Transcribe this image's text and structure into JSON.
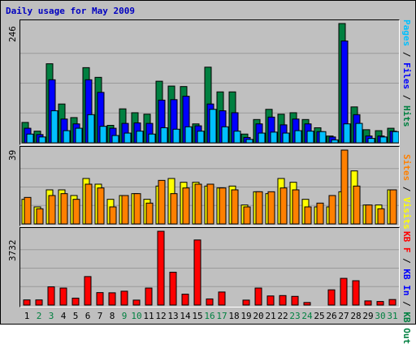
{
  "title": "Daily usage for May 2009",
  "chart_data": [
    {
      "type": "bar",
      "panel": "hits-files-pages",
      "ymax_label": "246",
      "ylim": [
        0,
        246
      ],
      "legend": [
        {
          "text": "Pages",
          "color": "#00c0ff"
        },
        {
          "text": " / ",
          "color": "#000000"
        },
        {
          "text": "Files",
          "color": "#0000ff"
        },
        {
          "text": " / ",
          "color": "#000000"
        },
        {
          "text": "Hits",
          "color": "#008040"
        }
      ],
      "series": [
        {
          "name": "Hits",
          "color": "#008040",
          "values": [
            42,
            24,
            163,
            80,
            52,
            155,
            135,
            36,
            70,
            62,
            59,
            127,
            117,
            116,
            39,
            156,
            105,
            105,
            18,
            48,
            69,
            59,
            62,
            48,
            31,
            14,
            246,
            74,
            27,
            25,
            30
          ]
        },
        {
          "name": "Files",
          "color": "#0000ff",
          "values": [
            30,
            17,
            130,
            49,
            39,
            130,
            104,
            30,
            40,
            41,
            40,
            88,
            89,
            96,
            35,
            80,
            66,
            62,
            11,
            39,
            53,
            37,
            49,
            39,
            23,
            12,
            210,
            58,
            14,
            14,
            24
          ]
        },
        {
          "name": "Pages",
          "color": "#00c0ff",
          "values": [
            18,
            12,
            66,
            25,
            30,
            58,
            34,
            15,
            20,
            24,
            18,
            31,
            28,
            33,
            24,
            69,
            33,
            24,
            7,
            20,
            22,
            20,
            25,
            24,
            23,
            6,
            39,
            40,
            9,
            12,
            23
          ]
        }
      ]
    },
    {
      "type": "bar",
      "panel": "visits-sites",
      "ymax_label": "39",
      "ylim": [
        0,
        39
      ],
      "legend": [
        {
          "text": "Sites",
          "color": "#ff8000"
        },
        {
          "text": " / ",
          "color": "#000000"
        },
        {
          "text": "Visits",
          "color": "#ffff00"
        }
      ],
      "series": [
        {
          "name": "Visits",
          "color": "#ffff00",
          "values": [
            13,
            9,
            18,
            18,
            15,
            24,
            21,
            13,
            15,
            16,
            13,
            20,
            24,
            22,
            22,
            20,
            19,
            20,
            10,
            17,
            16,
            24,
            22,
            13,
            9,
            9,
            17,
            28,
            10,
            10,
            18
          ]
        },
        {
          "name": "Sites",
          "color": "#ff8000",
          "values": [
            14,
            8,
            15,
            16,
            13,
            21,
            19,
            9,
            15,
            16,
            11,
            23,
            16,
            19,
            21,
            21,
            19,
            18,
            9,
            17,
            17,
            19,
            18,
            9,
            11,
            15,
            39,
            20,
            10,
            8,
            18
          ]
        }
      ]
    },
    {
      "type": "bar",
      "panel": "kbytes",
      "ymax_label": "3732",
      "ylim": [
        0,
        3732
      ],
      "legend": [
        {
          "text": "KB F",
          "color": "#ff0000"
        },
        {
          "text": " / ",
          "color": "#000000"
        },
        {
          "text": "KB In",
          "color": "#0000ff"
        },
        {
          "text": " / ",
          "color": "#000000"
        },
        {
          "text": "KB Out",
          "color": "#008040"
        }
      ],
      "series": [
        {
          "name": "KB F",
          "color": "#ff0000",
          "values": [
            260,
            260,
            920,
            860,
            350,
            1440,
            630,
            620,
            700,
            250,
            860,
            3730,
            1660,
            550,
            3290,
            310,
            660,
            0,
            250,
            860,
            460,
            480,
            440,
            130,
            0,
            770,
            1350,
            1230,
            210,
            180,
            280
          ]
        }
      ]
    }
  ],
  "x_labels": [
    "1",
    "2",
    "3",
    "4",
    "5",
    "6",
    "7",
    "8",
    "9",
    "10",
    "11",
    "12",
    "13",
    "14",
    "15",
    "16",
    "17",
    "18",
    "19",
    "20",
    "21",
    "22",
    "23",
    "24",
    "25",
    "26",
    "27",
    "28",
    "29",
    "30",
    "31"
  ],
  "weekend_days": [
    "2",
    "3",
    "9",
    "10",
    "16",
    "17",
    "23",
    "24",
    "30",
    "31"
  ],
  "weekday_color": "#000000",
  "weekend_color": "#008040"
}
